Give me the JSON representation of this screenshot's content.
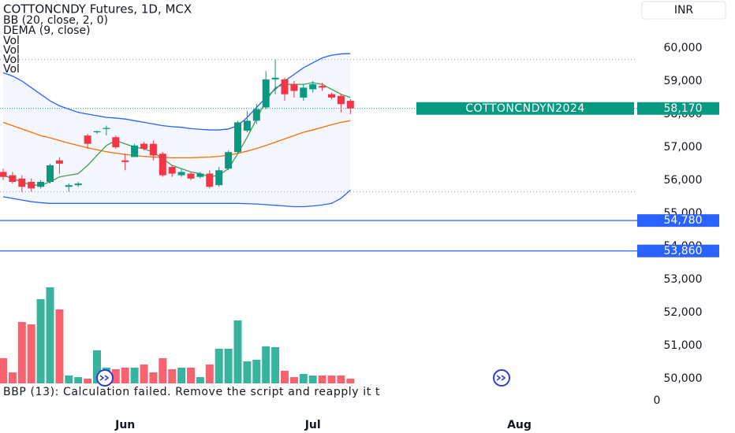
{
  "chart_data": {
    "type": "candlestick",
    "title": "COTTONCNDY Futures, 1D, MCX",
    "currency": "INR",
    "categories": [
      null,
      null,
      null,
      null,
      null,
      null,
      null,
      null,
      null,
      null,
      null,
      null,
      null,
      "Jun",
      null,
      null,
      null,
      null,
      null,
      null,
      null,
      null,
      null,
      null,
      null,
      null,
      null,
      null,
      null,
      null,
      null,
      null,
      null,
      "Jul",
      null,
      null,
      null,
      null,
      null,
      null,
      null,
      null,
      null,
      null,
      null,
      null,
      null,
      null,
      null,
      null,
      null,
      null,
      null,
      null,
      null,
      "Aug"
    ],
    "open": [
      56250,
      56150,
      56050,
      55950,
      55800,
      55950,
      56600,
      55800,
      55850,
      57350,
      57450,
      57550,
      57300,
      56600,
      56700,
      57100,
      57100,
      56800,
      56400,
      56150,
      56200,
      56100,
      56200,
      55850,
      56350,
      56850,
      57500,
      57800,
      58200,
      59050,
      59050,
      58900,
      58500,
      58750,
      58850,
      58600,
      58550,
      58400,
      null,
      null,
      null,
      null,
      null,
      null,
      null,
      null,
      null,
      null,
      null,
      null,
      null,
      null,
      null,
      null,
      null,
      null
    ],
    "high": [
      56350,
      56250,
      56150,
      56050,
      56000,
      56500,
      56700,
      55900,
      55950,
      57400,
      57500,
      57650,
      57350,
      56800,
      57100,
      57150,
      57200,
      56850,
      56450,
      56350,
      56250,
      56250,
      56300,
      56400,
      56900,
      57800,
      58100,
      58300,
      59300,
      59650,
      59100,
      59000,
      58900,
      59000,
      58950,
      58650,
      58600,
      58450,
      null,
      null,
      null,
      null,
      null,
      null,
      null,
      null,
      null,
      null,
      null,
      null,
      null,
      null,
      null,
      null,
      null,
      null
    ],
    "low": [
      56000,
      55900,
      55650,
      55650,
      55750,
      55900,
      56200,
      55650,
      55800,
      56950,
      57400,
      57350,
      56950,
      56300,
      56700,
      56900,
      56600,
      56100,
      56100,
      56100,
      56000,
      56050,
      55750,
      55800,
      56300,
      56800,
      57450,
      57700,
      58150,
      58600,
      58400,
      58500,
      58400,
      58650,
      58700,
      58450,
      58050,
      58000,
      null,
      null,
      null,
      null,
      null,
      null,
      null,
      null,
      null,
      null,
      null,
      null,
      null,
      null,
      null,
      null,
      null,
      null
    ],
    "close": [
      56100,
      55950,
      55800,
      55750,
      55950,
      56450,
      56500,
      55850,
      55900,
      57100,
      57480,
      57580,
      57000,
      56550,
      57050,
      56950,
      56750,
      56150,
      56200,
      56250,
      56050,
      56200,
      55800,
      56300,
      56850,
      57750,
      57800,
      58150,
      59050,
      59100,
      58600,
      58700,
      58800,
      58900,
      58800,
      58500,
      58300,
      58170,
      null,
      null,
      null,
      null,
      null,
      null,
      null,
      null,
      null,
      null,
      null,
      null,
      null,
      null,
      null,
      null,
      null,
      null
    ],
    "up_color": "#089981",
    "down_color": "#f23645",
    "bollinger": {
      "name": "BB (20, close, 2, 0)",
      "line_color": "#2962ff",
      "basis_color": "#ff6d00",
      "fill": "#2962ff",
      "upper": [
        59250,
        59150,
        59000,
        58800,
        58600,
        58400,
        58250,
        58150,
        58050,
        58000,
        57950,
        57900,
        57880,
        57850,
        57800,
        57750,
        57700,
        57650,
        57620,
        57600,
        57560,
        57540,
        57520,
        57520,
        57550,
        57650,
        57900,
        58200,
        58500,
        58750,
        59000,
        59200,
        59400,
        59550,
        59700,
        59780,
        59820,
        59830,
        null,
        null,
        null,
        null,
        null,
        null,
        null,
        null,
        null,
        null,
        null,
        null,
        null,
        null,
        null,
        null,
        null,
        null
      ],
      "basis": [
        57750,
        57650,
        57550,
        57450,
        57350,
        57280,
        57200,
        57120,
        57050,
        56980,
        56920,
        56860,
        56820,
        56780,
        56750,
        56720,
        56700,
        56690,
        56680,
        56680,
        56680,
        56690,
        56700,
        56720,
        56760,
        56810,
        56880,
        56960,
        57050,
        57150,
        57250,
        57350,
        57450,
        57520,
        57600,
        57680,
        57750,
        57800,
        null,
        null,
        null,
        null,
        null,
        null,
        null,
        null,
        null,
        null,
        null,
        null,
        null,
        null,
        null,
        null,
        null,
        null
      ],
      "lower": [
        55500,
        55450,
        55400,
        55350,
        55320,
        55300,
        55300,
        55300,
        55300,
        55300,
        55300,
        55300,
        55300,
        55300,
        55300,
        55300,
        55300,
        55300,
        55300,
        55300,
        55300,
        55300,
        55300,
        55300,
        55300,
        55300,
        55290,
        55280,
        55260,
        55240,
        55220,
        55200,
        55200,
        55220,
        55250,
        55300,
        55450,
        55700,
        null,
        null,
        null,
        null,
        null,
        null,
        null,
        null,
        null,
        null,
        null,
        null,
        null,
        null,
        null,
        null,
        null,
        null
      ]
    },
    "dema": {
      "name": "DEMA (9, close)",
      "color": "#43a047",
      "values": [
        56150,
        56050,
        55950,
        55850,
        55850,
        55950,
        56100,
        56150,
        56200,
        56450,
        56750,
        57050,
        57200,
        57100,
        57000,
        56950,
        56850,
        56650,
        56450,
        56350,
        56250,
        56200,
        56100,
        56150,
        56350,
        56800,
        57300,
        57850,
        58400,
        58800,
        58900,
        58900,
        58900,
        58950,
        58900,
        58750,
        58600,
        58500,
        null,
        null,
        null,
        null,
        null,
        null,
        null,
        null,
        null,
        null,
        null,
        null,
        null,
        null,
        null,
        null,
        null,
        null
      ]
    },
    "volume": {
      "names": [
        "Vol",
        "Vol",
        "Vol",
        "Vol"
      ],
      "up_color": "#22ab94",
      "down_color": "#f7525f",
      "values": [
        32,
        14,
        78,
        75,
        107,
        122,
        94,
        10,
        8,
        6,
        42,
        20,
        18,
        20,
        20,
        24,
        14,
        32,
        18,
        20,
        20,
        8,
        24,
        44,
        44,
        80,
        28,
        30,
        47,
        46,
        16,
        8,
        12,
        10,
        10,
        10,
        10,
        6,
        null,
        null,
        null,
        null,
        null,
        null,
        null,
        null,
        null,
        null,
        null,
        null,
        null,
        null,
        null,
        null,
        null,
        null
      ]
    },
    "last_price": {
      "symbol": "COTTONCNDYN2024",
      "value": 58170,
      "label": "58,170"
    },
    "hlines": [
      {
        "value": 54780,
        "label": "54,780"
      },
      {
        "value": 53860,
        "label": "53,860"
      }
    ],
    "hi_lo_lines": [
      59650,
      55650
    ],
    "ylim": [
      49700,
      61450
    ],
    "yticks": [
      {
        "value": 60000,
        "label": "60,000"
      },
      {
        "value": 59000,
        "label": "59,000"
      },
      {
        "value": 58000,
        "label": "58,000"
      },
      {
        "value": 57000,
        "label": "57,000"
      },
      {
        "value": 56000,
        "label": "56,000"
      },
      {
        "value": 55000,
        "label": "55,000"
      },
      {
        "value": 54000,
        "label": "54,000"
      },
      {
        "value": 53000,
        "label": "53,000"
      },
      {
        "value": 52000,
        "label": "52,000"
      },
      {
        "value": 51000,
        "label": "51,000"
      },
      {
        "value": 50000,
        "label": "50,000"
      }
    ],
    "grid": false,
    "bbp": {
      "text": "BBP (13): Calculation failed. Remove the script and reapply it t",
      "yticks": [
        0
      ]
    }
  }
}
